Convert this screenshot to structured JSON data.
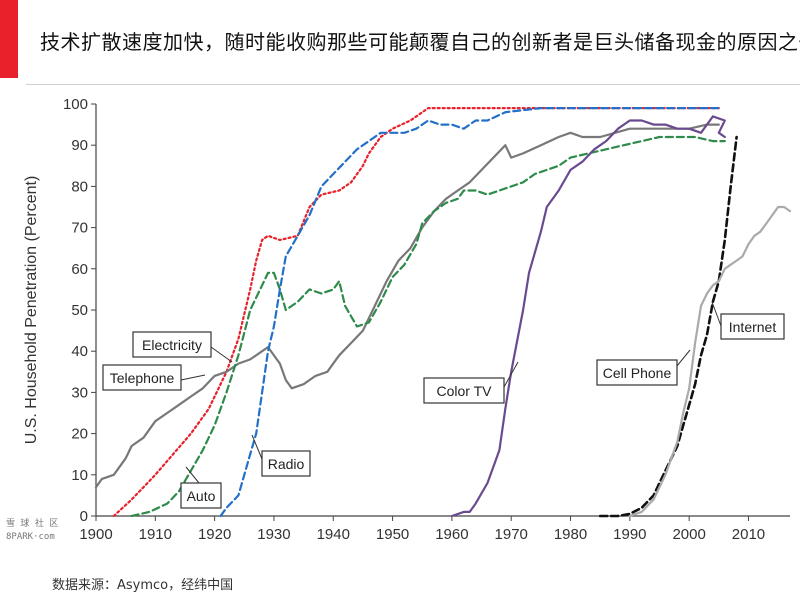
{
  "header": {
    "title": "技术扩散速度加快，随时能收购那些可能颠覆自己的创新者是巨头储备现金的原因之一",
    "accent_color": "#e8212a"
  },
  "footer": {
    "source": "数据来源：Asymco，经纬中国"
  },
  "watermark": {
    "line1": "雪 球 社 区",
    "line2": "8PARK·com"
  },
  "chart_data": {
    "type": "line",
    "title": "",
    "xlabel": "",
    "ylabel": "U.S. Household Penetration (Percent)",
    "xlim": [
      1900,
      2017
    ],
    "ylim": [
      0,
      100
    ],
    "xticks": [
      1900,
      1910,
      1920,
      1930,
      1940,
      1950,
      1960,
      1970,
      1980,
      1990,
      2000,
      2010
    ],
    "yticks": [
      0,
      10,
      20,
      30,
      40,
      50,
      60,
      70,
      80,
      90,
      100
    ],
    "grid": false,
    "series": [
      {
        "name": "Electricity",
        "color": "#e8212a",
        "style": "dotted",
        "points": [
          [
            1903,
            0
          ],
          [
            1906,
            4
          ],
          [
            1908,
            7
          ],
          [
            1910,
            10
          ],
          [
            1913,
            15
          ],
          [
            1916,
            20
          ],
          [
            1919,
            26
          ],
          [
            1922,
            35
          ],
          [
            1924,
            43
          ],
          [
            1926,
            55
          ],
          [
            1927,
            62
          ],
          [
            1928,
            67
          ],
          [
            1929,
            68
          ],
          [
            1931,
            67
          ],
          [
            1934,
            68
          ],
          [
            1936,
            75
          ],
          [
            1938,
            78
          ],
          [
            1941,
            79
          ],
          [
            1943,
            81
          ],
          [
            1945,
            85
          ],
          [
            1946,
            88
          ],
          [
            1948,
            92
          ],
          [
            1950,
            94
          ],
          [
            1953,
            96
          ],
          [
            1956,
            99
          ],
          [
            1960,
            99
          ],
          [
            1970,
            99
          ],
          [
            1980,
            99
          ],
          [
            1990,
            99
          ],
          [
            2005,
            99
          ]
        ]
      },
      {
        "name": "Telephone",
        "color": "#787878",
        "style": "solid",
        "points": [
          [
            1900,
            7
          ],
          [
            1901,
            9
          ],
          [
            1903,
            10
          ],
          [
            1905,
            14
          ],
          [
            1906,
            17
          ],
          [
            1908,
            19
          ],
          [
            1910,
            23
          ],
          [
            1912,
            25
          ],
          [
            1914,
            27
          ],
          [
            1916,
            29
          ],
          [
            1918,
            31
          ],
          [
            1920,
            34
          ],
          [
            1922,
            35
          ],
          [
            1924,
            37
          ],
          [
            1926,
            38
          ],
          [
            1928,
            40
          ],
          [
            1929,
            41
          ],
          [
            1931,
            37
          ],
          [
            1932,
            33
          ],
          [
            1933,
            31
          ],
          [
            1935,
            32
          ],
          [
            1937,
            34
          ],
          [
            1939,
            35
          ],
          [
            1941,
            39
          ],
          [
            1943,
            42
          ],
          [
            1945,
            45
          ],
          [
            1947,
            51
          ],
          [
            1949,
            57
          ],
          [
            1951,
            62
          ],
          [
            1953,
            65
          ],
          [
            1955,
            70
          ],
          [
            1957,
            74
          ],
          [
            1959,
            77
          ],
          [
            1961,
            79
          ],
          [
            1963,
            81
          ],
          [
            1965,
            84
          ],
          [
            1967,
            87
          ],
          [
            1969,
            90
          ],
          [
            1970,
            87
          ],
          [
            1972,
            88
          ],
          [
            1975,
            90
          ],
          [
            1978,
            92
          ],
          [
            1980,
            93
          ],
          [
            1982,
            92
          ],
          [
            1985,
            92
          ],
          [
            1990,
            94
          ],
          [
            1995,
            94
          ],
          [
            2000,
            94
          ],
          [
            2003,
            95
          ],
          [
            2005,
            95
          ]
        ]
      },
      {
        "name": "Auto",
        "color": "#2e8b4c",
        "style": "dashed",
        "points": [
          [
            1906,
            0
          ],
          [
            1909,
            1
          ],
          [
            1912,
            3
          ],
          [
            1914,
            6
          ],
          [
            1916,
            11
          ],
          [
            1918,
            16
          ],
          [
            1920,
            22
          ],
          [
            1922,
            30
          ],
          [
            1924,
            39
          ],
          [
            1926,
            50
          ],
          [
            1928,
            56
          ],
          [
            1929,
            59
          ],
          [
            1930,
            59
          ],
          [
            1931,
            55
          ],
          [
            1932,
            50
          ],
          [
            1934,
            52
          ],
          [
            1936,
            55
          ],
          [
            1938,
            54
          ],
          [
            1940,
            55
          ],
          [
            1941,
            57
          ],
          [
            1942,
            51
          ],
          [
            1944,
            46
          ],
          [
            1946,
            47
          ],
          [
            1948,
            52
          ],
          [
            1950,
            58
          ],
          [
            1952,
            61
          ],
          [
            1954,
            66
          ],
          [
            1955,
            71
          ],
          [
            1957,
            74
          ],
          [
            1959,
            76
          ],
          [
            1961,
            77
          ],
          [
            1962,
            79
          ],
          [
            1964,
            79
          ],
          [
            1966,
            78
          ],
          [
            1968,
            79
          ],
          [
            1970,
            80
          ],
          [
            1972,
            81
          ],
          [
            1974,
            83
          ],
          [
            1976,
            84
          ],
          [
            1978,
            85
          ],
          [
            1980,
            87
          ],
          [
            1983,
            88
          ],
          [
            1986,
            89
          ],
          [
            1989,
            90
          ],
          [
            1992,
            91
          ],
          [
            1995,
            92
          ],
          [
            1998,
            92
          ],
          [
            2001,
            92
          ],
          [
            2004,
            91
          ],
          [
            2006,
            91
          ]
        ]
      },
      {
        "name": "Radio",
        "color": "#2470c8",
        "style": "dashed",
        "points": [
          [
            1921,
            0
          ],
          [
            1922,
            2
          ],
          [
            1924,
            5
          ],
          [
            1925,
            10
          ],
          [
            1926,
            15
          ],
          [
            1927,
            20
          ],
          [
            1928,
            30
          ],
          [
            1929,
            40
          ],
          [
            1930,
            46
          ],
          [
            1931,
            55
          ],
          [
            1932,
            63
          ],
          [
            1934,
            68
          ],
          [
            1936,
            73
          ],
          [
            1938,
            80
          ],
          [
            1940,
            83
          ],
          [
            1942,
            86
          ],
          [
            1944,
            89
          ],
          [
            1946,
            91
          ],
          [
            1948,
            93
          ],
          [
            1950,
            93
          ],
          [
            1952,
            93
          ],
          [
            1954,
            94
          ],
          [
            1956,
            96
          ],
          [
            1958,
            95
          ],
          [
            1960,
            95
          ],
          [
            1962,
            94
          ],
          [
            1964,
            96
          ],
          [
            1966,
            96
          ],
          [
            1969,
            98
          ],
          [
            1975,
            99
          ],
          [
            1985,
            99
          ],
          [
            1995,
            99
          ],
          [
            2005,
            99
          ]
        ]
      },
      {
        "name": "Color TV",
        "color": "#6a4a8e",
        "style": "solid",
        "points": [
          [
            1960,
            0
          ],
          [
            1962,
            1
          ],
          [
            1963,
            1
          ],
          [
            1964,
            3
          ],
          [
            1966,
            8
          ],
          [
            1968,
            16
          ],
          [
            1969,
            26
          ],
          [
            1970,
            35
          ],
          [
            1972,
            50
          ],
          [
            1973,
            59
          ],
          [
            1975,
            69
          ],
          [
            1976,
            75
          ],
          [
            1978,
            79
          ],
          [
            1980,
            84
          ],
          [
            1982,
            86
          ],
          [
            1984,
            89
          ],
          [
            1986,
            91
          ],
          [
            1988,
            94
          ],
          [
            1990,
            96
          ],
          [
            1992,
            96
          ],
          [
            1994,
            95
          ],
          [
            1996,
            95
          ],
          [
            1998,
            94
          ],
          [
            2000,
            94
          ],
          [
            2002,
            93
          ],
          [
            2004,
            97
          ],
          [
            2006,
            96
          ],
          [
            2005,
            93
          ],
          [
            2006,
            92
          ]
        ]
      },
      {
        "name": "Cell Phone",
        "color": "#111111",
        "style": "dashed",
        "points": [
          [
            1985,
            0
          ],
          [
            1988,
            0
          ],
          [
            1990,
            0.5
          ],
          [
            1992,
            2
          ],
          [
            1994,
            5
          ],
          [
            1996,
            11
          ],
          [
            1998,
            17
          ],
          [
            1999,
            22
          ],
          [
            2000,
            27
          ],
          [
            2001,
            32
          ],
          [
            2002,
            39
          ],
          [
            2003,
            44
          ],
          [
            2004,
            52
          ],
          [
            2005,
            57
          ],
          [
            2006,
            67
          ],
          [
            2007,
            80
          ],
          [
            2008,
            92
          ]
        ]
      },
      {
        "name": "Internet",
        "color": "#aaaaaa",
        "style": "solid",
        "points": [
          [
            1990,
            0
          ],
          [
            1992,
            1
          ],
          [
            1994,
            4
          ],
          [
            1996,
            10
          ],
          [
            1998,
            18
          ],
          [
            1999,
            25
          ],
          [
            2000,
            31
          ],
          [
            2001,
            42
          ],
          [
            2002,
            51
          ],
          [
            2003,
            54
          ],
          [
            2004,
            56
          ],
          [
            2005,
            57
          ],
          [
            2006,
            60
          ],
          [
            2007,
            61
          ],
          [
            2008,
            62
          ],
          [
            2009,
            63
          ],
          [
            2010,
            66
          ],
          [
            2011,
            68
          ],
          [
            2012,
            69
          ],
          [
            2013,
            71
          ],
          [
            2014,
            73
          ],
          [
            2015,
            75
          ],
          [
            2016,
            75
          ],
          [
            2017,
            74
          ]
        ]
      }
    ],
    "annotations": [
      {
        "text": "Electricity",
        "series": "Electricity"
      },
      {
        "text": "Telephone",
        "series": "Telephone"
      },
      {
        "text": "Auto",
        "series": "Auto"
      },
      {
        "text": "Radio",
        "series": "Radio"
      },
      {
        "text": "Color TV",
        "series": "Color TV"
      },
      {
        "text": "Cell Phone",
        "series": "Cell Phone"
      },
      {
        "text": "Internet",
        "series": "Internet"
      }
    ]
  }
}
